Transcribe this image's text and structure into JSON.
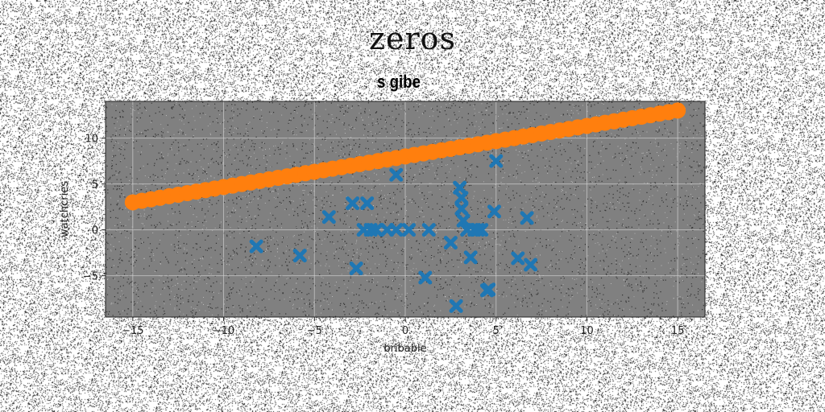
{
  "figure": {
    "suptitle": "zeros",
    "title": "s gibe"
  },
  "chart_data": {
    "type": "scatter",
    "title": "s gibe",
    "xlabel": "bribable",
    "ylabel": "watchcries",
    "xlim": [
      -16.5,
      16.5
    ],
    "ylim": [
      -9.5,
      14
    ],
    "xticks": [
      -15,
      -10,
      -5,
      0,
      5,
      10,
      15
    ],
    "yticks": [
      -5,
      0,
      5,
      10
    ],
    "grid": true,
    "background": "#808080",
    "series": [
      {
        "marker": "circle",
        "color": "#ff7f0e",
        "x": [
          -15,
          -14.5,
          -14,
          -13.5,
          -13,
          -12.5,
          -12,
          -11.5,
          -11,
          -10.5,
          -10,
          -9.5,
          -9,
          -8.5,
          -8,
          -7.5,
          -7,
          -6.5,
          -6,
          -5.5,
          -5,
          -4.5,
          -4,
          -3.5,
          -3,
          -2.5,
          -2,
          -1.5,
          -1,
          -0.5,
          0,
          0.5,
          1,
          1.5,
          2,
          2.5,
          3,
          3.5,
          4,
          4.5,
          5,
          5.5,
          6,
          6.5,
          7,
          7.5,
          8,
          8.5,
          9,
          9.5,
          10,
          10.5,
          11,
          11.5,
          12,
          12.5,
          13,
          13.5,
          14,
          14.5,
          15
        ],
        "y": [
          3,
          3.17,
          3.33,
          3.5,
          3.67,
          3.83,
          4,
          4.17,
          4.33,
          4.5,
          4.67,
          4.83,
          5,
          5.17,
          5.33,
          5.5,
          5.67,
          5.83,
          6,
          6.17,
          6.33,
          6.5,
          6.67,
          6.83,
          7,
          7.17,
          7.33,
          7.5,
          7.67,
          7.83,
          8,
          8.17,
          8.33,
          8.5,
          8.67,
          8.83,
          9,
          9.17,
          9.33,
          9.5,
          9.67,
          9.83,
          10,
          10.17,
          10.33,
          10.5,
          10.67,
          10.83,
          11,
          11.17,
          11.33,
          11.5,
          11.67,
          11.83,
          12,
          12.17,
          12.33,
          12.5,
          12.67,
          12.83,
          13
        ]
      },
      {
        "marker": "x",
        "color": "#1f77b4",
        "x": [
          -8.2,
          -5.8,
          -4.2,
          -2.9,
          -2.7,
          -2.1,
          -1.9,
          -2.3,
          -1.6,
          -1.0,
          -0.5,
          0.2,
          -0.5,
          1.1,
          1.3,
          2.5,
          3.0,
          3.1,
          3.1,
          3.2,
          3.4,
          3.6,
          4.0,
          4.2,
          3.8,
          4.6,
          4.9,
          5.0,
          6.2,
          6.7,
          6.9,
          2.8,
          4.5
        ],
        "y": [
          -1.8,
          -2.8,
          1.4,
          2.9,
          -4.2,
          2.9,
          0.0,
          0.0,
          0.0,
          0.0,
          0.0,
          0.0,
          6.0,
          -5.2,
          0.0,
          -1.4,
          4.6,
          3.5,
          2.3,
          1.0,
          0.0,
          -3.0,
          0.0,
          0.0,
          0.0,
          -6.5,
          2.0,
          7.5,
          -3.1,
          1.3,
          -3.8,
          -8.3,
          -6.6
        ]
      }
    ]
  }
}
